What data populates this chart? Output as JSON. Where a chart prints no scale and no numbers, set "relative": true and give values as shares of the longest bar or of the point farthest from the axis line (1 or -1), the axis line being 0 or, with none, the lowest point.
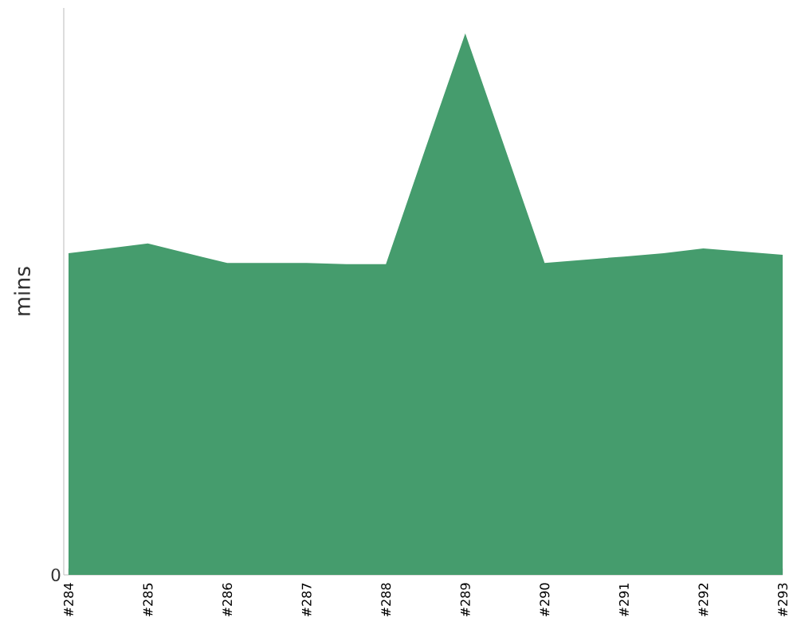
{
  "chart_data": {
    "type": "area",
    "ylabel": "mins",
    "relative": true,
    "annotations": [
      "0"
    ],
    "categories": [
      "#284",
      null,
      "#285",
      null,
      "#286",
      null,
      "#287",
      null,
      "#288",
      null,
      "#289",
      null,
      "#290",
      null,
      "#291",
      null,
      "#292",
      null,
      "#293"
    ],
    "values": [
      0.594,
      0.603,
      0.612,
      0.594,
      0.576,
      0.576,
      0.576,
      0.574,
      0.574,
      0.788,
      1,
      0.788,
      0.576,
      0.582,
      0.588,
      0.594,
      0.603,
      0.597,
      0.591
    ],
    "color": "#459c6d"
  }
}
